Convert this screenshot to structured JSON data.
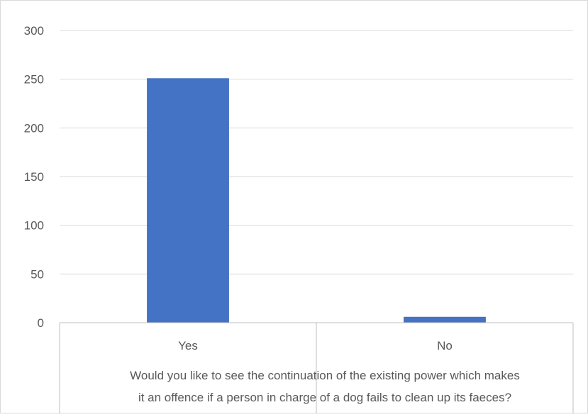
{
  "chart_data": {
    "type": "bar",
    "categories": [
      "Yes",
      "No"
    ],
    "values": [
      251,
      6
    ],
    "ylim": [
      0,
      300
    ],
    "y_ticks": [
      0,
      50,
      100,
      150,
      200,
      250,
      300
    ],
    "xlabel": "Would you like to see the continuation of the existing power which makes it an offence if a person in charge of a dog fails to clean up its faeces?",
    "xlabel_lines": [
      "Would you like to see the continuation of the existing power which makes",
      "it an offence if a person in charge of a dog fails to clean up its faeces?"
    ],
    "ylabel": "",
    "title": "",
    "grid": true,
    "legend": "none",
    "colors": {
      "bar": "#4472C4",
      "grid": "#D9D9D9",
      "axis": "#BFBFBF",
      "text": "#595959",
      "border": "#D9D9D9"
    }
  }
}
